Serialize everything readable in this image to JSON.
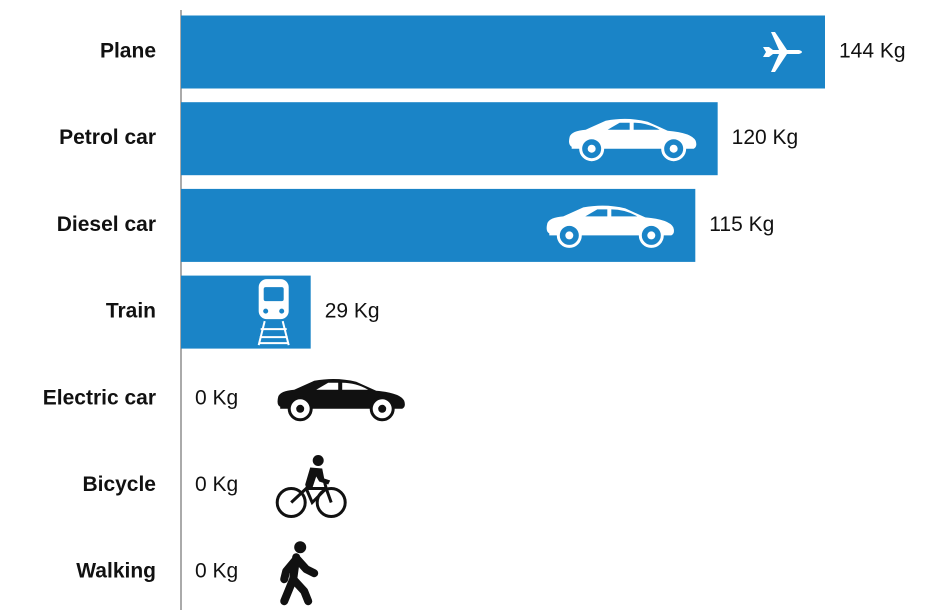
{
  "chart_data": {
    "type": "bar",
    "orientation": "horizontal",
    "categories": [
      "Plane",
      "Petrol car",
      "Diesel car",
      "Train",
      "Electric car",
      "Bicycle",
      "Walking"
    ],
    "values": [
      144,
      120,
      115,
      29,
      0,
      0,
      0
    ],
    "value_labels": [
      "144 Kg",
      "120 Kg",
      "115 Kg",
      "29 Kg",
      "0 Kg",
      "0 Kg",
      "0 Kg"
    ],
    "color": "#1a84c7"
  }
}
